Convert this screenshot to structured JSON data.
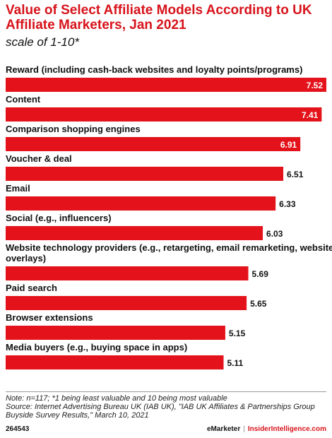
{
  "chart_data": {
    "type": "bar",
    "orientation": "horizontal",
    "title": "Value of Select Affiliate Models According to UK Affiliate Marketers, Jan 2021",
    "subtitle": "scale of 1-10*",
    "categories": [
      "Reward (including cash-back websites and loyalty points/programs)",
      "Content",
      "Comparison shopping engines",
      "Voucher & deal",
      "Email",
      "Social (e.g., influencers)",
      "Website technology providers (e.g., retargeting, email remarketing, website overlays)",
      "Paid search",
      "Browser extensions",
      "Media buyers (e.g., buying space in apps)"
    ],
    "category_lines": [
      [
        "Reward (including cash-back websites and loyalty points/programs)"
      ],
      [
        "Content"
      ],
      [
        "Comparison shopping engines"
      ],
      [
        "Voucher & deal"
      ],
      [
        "Email"
      ],
      [
        "Social (e.g., influencers)"
      ],
      [
        "Website technology providers (e.g., retargeting, email remarketing, website",
        "overlays)"
      ],
      [
        "Paid search"
      ],
      [
        "Browser extensions"
      ],
      [
        "Media buyers (e.g., buying space in apps)"
      ]
    ],
    "values": [
      7.52,
      7.41,
      6.91,
      6.51,
      6.33,
      6.03,
      5.69,
      5.65,
      5.15,
      5.11
    ],
    "value_labels": [
      "7.52",
      "7.41",
      "6.91",
      "6.51",
      "6.33",
      "6.03",
      "5.69",
      "5.65",
      "5.15",
      "5.11"
    ],
    "xlim": [
      0,
      7.52
    ],
    "xlabel": "",
    "ylabel": "",
    "grid": false,
    "legend": "none",
    "bar_color": "#e3121b"
  },
  "footer": {
    "note": "Note: n=117; *1 being least valuable and 10 being most valuable",
    "source": "Source: Internet Advertising Bureau UK (IAB UK), \"IAB UK Affiliates & Partnerships Group Buyside Survey Results,\" March 10, 2021",
    "chart_id": "264543",
    "brand_left": "eMarketer",
    "brand_sep": "|",
    "brand_right": "InsiderIntelligence.com"
  },
  "colors": {
    "title": "#d7131b",
    "bar": "#e3121b",
    "value_inside": "#ffffff",
    "value_outside": "#111111"
  }
}
